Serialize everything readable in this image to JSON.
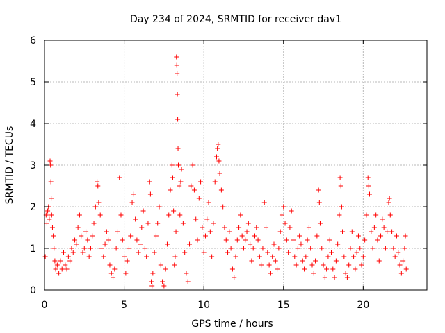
{
  "chart_data": {
    "type": "scatter",
    "title": "Day 234 of 2024, SRMTID for receiver dav1",
    "xlabel": "GPS time / hours",
    "ylabel": "SRMTID / TECUs",
    "xlim": [
      0,
      24
    ],
    "ylim": [
      0,
      6
    ],
    "xticks": [
      0,
      5,
      10,
      15,
      20
    ],
    "yticks": [
      0,
      1,
      2,
      3,
      4,
      5,
      6
    ],
    "grid": true,
    "marker": "+",
    "color": "#ff0000",
    "series": [
      {
        "name": "dav1",
        "points": [
          [
            0.05,
            0.8
          ],
          [
            0.1,
            1.8
          ],
          [
            0.15,
            1.6
          ],
          [
            0.2,
            1.9
          ],
          [
            0.25,
            2.0
          ],
          [
            0.3,
            1.7
          ],
          [
            0.35,
            3.1
          ],
          [
            0.38,
            3.0
          ],
          [
            0.4,
            2.6
          ],
          [
            0.42,
            2.2
          ],
          [
            0.45,
            1.8
          ],
          [
            0.5,
            1.5
          ],
          [
            0.55,
            1.3
          ],
          [
            0.6,
            1.0
          ],
          [
            0.65,
            0.7
          ],
          [
            0.7,
            0.5
          ],
          [
            0.8,
            0.6
          ],
          [
            0.9,
            0.4
          ],
          [
            1.0,
            0.7
          ],
          [
            1.1,
            0.5
          ],
          [
            1.2,
            0.9
          ],
          [
            1.3,
            0.6
          ],
          [
            1.4,
            0.5
          ],
          [
            1.5,
            0.8
          ],
          [
            1.6,
            0.7
          ],
          [
            1.7,
            1.0
          ],
          [
            1.8,
            0.9
          ],
          [
            1.9,
            1.2
          ],
          [
            2.0,
            1.1
          ],
          [
            2.1,
            1.5
          ],
          [
            2.2,
            1.8
          ],
          [
            2.3,
            1.3
          ],
          [
            2.4,
            0.9
          ],
          [
            2.5,
            1.0
          ],
          [
            2.6,
            1.4
          ],
          [
            2.7,
            1.2
          ],
          [
            2.8,
            0.8
          ],
          [
            2.9,
            1.0
          ],
          [
            3.0,
            1.3
          ],
          [
            3.1,
            1.6
          ],
          [
            3.2,
            2.0
          ],
          [
            3.3,
            2.6
          ],
          [
            3.35,
            2.5
          ],
          [
            3.4,
            2.1
          ],
          [
            3.5,
            1.8
          ],
          [
            3.6,
            1.0
          ],
          [
            3.7,
            0.8
          ],
          [
            3.8,
            1.1
          ],
          [
            3.9,
            1.4
          ],
          [
            4.0,
            1.2
          ],
          [
            4.1,
            0.6
          ],
          [
            4.2,
            0.4
          ],
          [
            4.3,
            0.3
          ],
          [
            4.4,
            0.5
          ],
          [
            4.5,
            1.0
          ],
          [
            4.6,
            1.4
          ],
          [
            4.7,
            2.7
          ],
          [
            4.8,
            1.8
          ],
          [
            4.9,
            1.2
          ],
          [
            5.0,
            0.8
          ],
          [
            5.1,
            0.4
          ],
          [
            5.2,
            0.7
          ],
          [
            5.3,
            1.0
          ],
          [
            5.4,
            1.3
          ],
          [
            5.5,
            2.1
          ],
          [
            5.6,
            2.3
          ],
          [
            5.7,
            1.7
          ],
          [
            5.8,
            1.2
          ],
          [
            5.9,
            0.9
          ],
          [
            6.0,
            1.1
          ],
          [
            6.1,
            1.5
          ],
          [
            6.2,
            1.9
          ],
          [
            6.3,
            1.0
          ],
          [
            6.4,
            0.8
          ],
          [
            6.5,
            1.6
          ],
          [
            6.6,
            2.6
          ],
          [
            6.65,
            2.3
          ],
          [
            6.7,
            0.2
          ],
          [
            6.75,
            0.1
          ],
          [
            6.8,
            0.4
          ],
          [
            6.9,
            0.9
          ],
          [
            7.0,
            1.3
          ],
          [
            7.1,
            1.6
          ],
          [
            7.2,
            2.0
          ],
          [
            7.3,
            0.6
          ],
          [
            7.4,
            0.2
          ],
          [
            7.5,
            0.1
          ],
          [
            7.6,
            0.5
          ],
          [
            7.7,
            1.1
          ],
          [
            7.8,
            1.8
          ],
          [
            7.9,
            2.4
          ],
          [
            8.0,
            3.0
          ],
          [
            8.05,
            2.7
          ],
          [
            8.1,
            1.9
          ],
          [
            8.15,
            0.6
          ],
          [
            8.2,
            0.8
          ],
          [
            8.25,
            1.4
          ],
          [
            8.28,
            5.6
          ],
          [
            8.3,
            5.4
          ],
          [
            8.32,
            5.2
          ],
          [
            8.34,
            4.7
          ],
          [
            8.36,
            4.1
          ],
          [
            8.38,
            3.4
          ],
          [
            8.4,
            3.0
          ],
          [
            8.45,
            2.5
          ],
          [
            8.5,
            1.8
          ],
          [
            8.55,
            2.6
          ],
          [
            8.6,
            2.9
          ],
          [
            8.7,
            1.6
          ],
          [
            8.8,
            0.9
          ],
          [
            8.9,
            0.4
          ],
          [
            9.0,
            0.2
          ],
          [
            9.1,
            1.1
          ],
          [
            9.2,
            2.5
          ],
          [
            9.3,
            3.0
          ],
          [
            9.4,
            2.4
          ],
          [
            9.5,
            1.7
          ],
          [
            9.6,
            1.2
          ],
          [
            9.7,
            2.2
          ],
          [
            9.8,
            2.6
          ],
          [
            9.9,
            1.5
          ],
          [
            10.0,
            0.9
          ],
          [
            10.1,
            1.3
          ],
          [
            10.2,
            1.7
          ],
          [
            10.3,
            2.1
          ],
          [
            10.4,
            1.4
          ],
          [
            10.5,
            0.8
          ],
          [
            10.6,
            1.6
          ],
          [
            10.7,
            2.6
          ],
          [
            10.8,
            3.2
          ],
          [
            10.85,
            3.4
          ],
          [
            10.9,
            3.5
          ],
          [
            10.95,
            3.1
          ],
          [
            11.0,
            2.8
          ],
          [
            11.1,
            2.4
          ],
          [
            11.2,
            2.0
          ],
          [
            11.3,
            1.5
          ],
          [
            11.4,
            1.2
          ],
          [
            11.5,
            0.9
          ],
          [
            11.6,
            1.4
          ],
          [
            11.7,
            1.0
          ],
          [
            11.8,
            0.5
          ],
          [
            11.9,
            0.3
          ],
          [
            12.0,
            0.8
          ],
          [
            12.1,
            1.2
          ],
          [
            12.2,
            1.5
          ],
          [
            12.3,
            1.8
          ],
          [
            12.4,
            1.3
          ],
          [
            12.5,
            1.0
          ],
          [
            12.6,
            1.2
          ],
          [
            12.7,
            1.4
          ],
          [
            12.8,
            1.6
          ],
          [
            12.9,
            1.1
          ],
          [
            13.0,
            0.7
          ],
          [
            13.1,
            1.0
          ],
          [
            13.2,
            1.3
          ],
          [
            13.3,
            1.5
          ],
          [
            13.4,
            1.2
          ],
          [
            13.5,
            0.8
          ],
          [
            13.6,
            0.6
          ],
          [
            13.7,
            1.0
          ],
          [
            13.8,
            2.1
          ],
          [
            13.9,
            1.5
          ],
          [
            14.0,
            0.9
          ],
          [
            14.1,
            0.6
          ],
          [
            14.2,
            0.4
          ],
          [
            14.3,
            0.8
          ],
          [
            14.4,
            1.1
          ],
          [
            14.5,
            0.7
          ],
          [
            14.6,
            0.5
          ],
          [
            14.7,
            1.0
          ],
          [
            14.8,
            1.4
          ],
          [
            14.9,
            1.8
          ],
          [
            15.0,
            2.0
          ],
          [
            15.1,
            1.6
          ],
          [
            15.2,
            1.2
          ],
          [
            15.3,
            0.9
          ],
          [
            15.4,
            1.5
          ],
          [
            15.5,
            1.9
          ],
          [
            15.6,
            1.2
          ],
          [
            15.7,
            0.8
          ],
          [
            15.8,
            0.6
          ],
          [
            15.9,
            1.0
          ],
          [
            16.0,
            1.3
          ],
          [
            16.1,
            1.1
          ],
          [
            16.2,
            0.7
          ],
          [
            16.3,
            0.5
          ],
          [
            16.4,
            0.8
          ],
          [
            16.5,
            1.2
          ],
          [
            16.6,
            1.5
          ],
          [
            16.7,
            1.0
          ],
          [
            16.8,
            0.6
          ],
          [
            16.9,
            0.4
          ],
          [
            17.0,
            0.7
          ],
          [
            17.1,
            1.3
          ],
          [
            17.2,
            2.4
          ],
          [
            17.25,
            2.1
          ],
          [
            17.3,
            1.6
          ],
          [
            17.4,
            1.0
          ],
          [
            17.5,
            0.6
          ],
          [
            17.6,
            0.3
          ],
          [
            17.7,
            0.5
          ],
          [
            17.8,
            0.8
          ],
          [
            17.9,
            1.2
          ],
          [
            18.0,
            0.9
          ],
          [
            18.1,
            0.5
          ],
          [
            18.2,
            0.3
          ],
          [
            18.3,
            0.7
          ],
          [
            18.4,
            1.1
          ],
          [
            18.5,
            1.8
          ],
          [
            18.55,
            2.7
          ],
          [
            18.6,
            2.5
          ],
          [
            18.65,
            2.0
          ],
          [
            18.7,
            1.4
          ],
          [
            18.8,
            0.8
          ],
          [
            18.9,
            0.4
          ],
          [
            19.0,
            0.3
          ],
          [
            19.1,
            0.6
          ],
          [
            19.2,
            1.0
          ],
          [
            19.3,
            1.4
          ],
          [
            19.4,
            0.8
          ],
          [
            19.5,
            0.5
          ],
          [
            19.6,
            0.9
          ],
          [
            19.7,
            1.3
          ],
          [
            19.8,
            1.0
          ],
          [
            19.9,
            0.6
          ],
          [
            20.0,
            0.8
          ],
          [
            20.1,
            1.2
          ],
          [
            20.2,
            1.8
          ],
          [
            20.3,
            2.7
          ],
          [
            20.35,
            2.5
          ],
          [
            20.4,
            2.3
          ],
          [
            20.5,
            1.4
          ],
          [
            20.6,
            1.0
          ],
          [
            20.7,
            1.5
          ],
          [
            20.8,
            1.8
          ],
          [
            20.9,
            1.2
          ],
          [
            21.0,
            0.7
          ],
          [
            21.1,
            1.3
          ],
          [
            21.2,
            1.7
          ],
          [
            21.3,
            1.5
          ],
          [
            21.4,
            1.0
          ],
          [
            21.5,
            1.4
          ],
          [
            21.6,
            2.1
          ],
          [
            21.65,
            2.2
          ],
          [
            21.7,
            1.8
          ],
          [
            21.8,
            1.4
          ],
          [
            21.9,
            1.0
          ],
          [
            22.0,
            0.8
          ],
          [
            22.1,
            1.3
          ],
          [
            22.2,
            0.9
          ],
          [
            22.3,
            0.6
          ],
          [
            22.4,
            0.4
          ],
          [
            22.5,
            0.7
          ],
          [
            22.6,
            1.0
          ],
          [
            22.65,
            1.3
          ],
          [
            22.7,
            0.5
          ]
        ]
      }
    ]
  }
}
